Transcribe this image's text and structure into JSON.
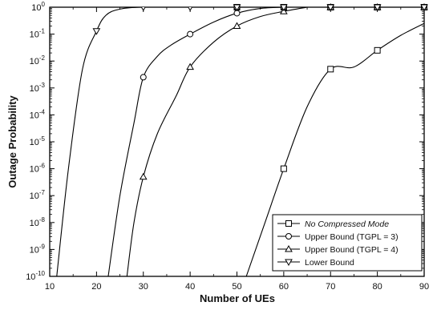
{
  "chart_data": {
    "type": "line",
    "title": "",
    "xlabel": "Number of UEs",
    "ylabel": "Outage Probability",
    "xscale": "linear",
    "yscale": "log",
    "xlim": [
      10,
      90
    ],
    "ylim": [
      1e-10,
      1
    ],
    "grid": false,
    "legend_position": "bottom-right",
    "xticks": [
      {
        "value": 10,
        "label": "10"
      },
      {
        "value": 20,
        "label": "20"
      },
      {
        "value": 30,
        "label": "30"
      },
      {
        "value": 40,
        "label": "40"
      },
      {
        "value": 50,
        "label": "50"
      },
      {
        "value": 60,
        "label": "60"
      },
      {
        "value": 70,
        "label": "70"
      },
      {
        "value": 80,
        "label": "80"
      },
      {
        "value": 90,
        "label": "90"
      }
    ],
    "yticks": [
      {
        "value": 1.0,
        "base": "10",
        "exp": "0"
      },
      {
        "value": 0.1,
        "base": "10",
        "exp": "-1"
      },
      {
        "value": 0.01,
        "base": "10",
        "exp": "-2"
      },
      {
        "value": 0.001,
        "base": "10",
        "exp": "-3"
      },
      {
        "value": 0.0001,
        "base": "10",
        "exp": "-4"
      },
      {
        "value": 1e-05,
        "base": "10",
        "exp": "-5"
      },
      {
        "value": 1e-06,
        "base": "10",
        "exp": "-6"
      },
      {
        "value": 1e-07,
        "base": "10",
        "exp": "-7"
      },
      {
        "value": 1e-08,
        "base": "10",
        "exp": "-8"
      },
      {
        "value": 1e-09,
        "base": "10",
        "exp": "-9"
      },
      {
        "value": 1e-10,
        "base": "10",
        "exp": "-10"
      }
    ],
    "series": [
      {
        "name": "No Compressed Mode",
        "marker": "square",
        "italic": true,
        "x": [
          52,
          56,
          60,
          65,
          70,
          75,
          80,
          85,
          90
        ],
        "y": [
          1e-10,
          1e-08,
          1e-06,
          0.0002,
          0.005,
          0.006,
          0.025,
          0.09,
          0.25
        ],
        "markers": [
          [
            60,
            1e-06
          ],
          [
            70,
            0.005
          ],
          [
            80,
            0.025
          ]
        ]
      },
      {
        "name": "Upper Bound (TGPL = 3)",
        "marker": "circle",
        "x": [
          22.5,
          25,
          28,
          30,
          33,
          36,
          40,
          45,
          50,
          55,
          60
        ],
        "y": [
          1e-10,
          1e-07,
          5e-05,
          0.0025,
          0.015,
          0.04,
          0.1,
          0.28,
          0.6,
          0.9,
          1
        ],
        "markers": [
          [
            30,
            0.0025
          ],
          [
            40,
            0.1
          ],
          [
            50,
            0.6
          ]
        ]
      },
      {
        "name": "Upper Bound (TGPL = 4)",
        "marker": "triangle-up",
        "x": [
          26.5,
          28,
          30,
          33,
          37,
          40,
          45,
          50,
          55,
          60,
          65
        ],
        "y": [
          1e-10,
          1e-08,
          5e-07,
          2e-05,
          0.0005,
          0.006,
          0.05,
          0.2,
          0.45,
          0.7,
          1
        ],
        "markers": [
          [
            30,
            5e-07
          ],
          [
            40,
            0.006
          ],
          [
            50,
            0.2
          ],
          [
            60,
            0.7
          ]
        ]
      },
      {
        "name": "Lower Bound",
        "marker": "triangle-down",
        "x": [
          11.5,
          14,
          17,
          20,
          22,
          25,
          30,
          40
        ],
        "y": [
          1e-10,
          1e-06,
          0.005,
          0.13,
          0.5,
          0.85,
          1,
          1
        ],
        "markers": [
          [
            20,
            0.13
          ],
          [
            30,
            1
          ],
          [
            40,
            1
          ]
        ]
      }
    ],
    "top_markers": {
      "y": 1,
      "x_squares": [
        50,
        60,
        70,
        80,
        90
      ],
      "x_circles": [
        50,
        60,
        70,
        80,
        90
      ],
      "x_triangles_up": [
        70,
        80,
        90
      ],
      "x_triangles_down": [
        50,
        60,
        70,
        80,
        90
      ]
    }
  }
}
